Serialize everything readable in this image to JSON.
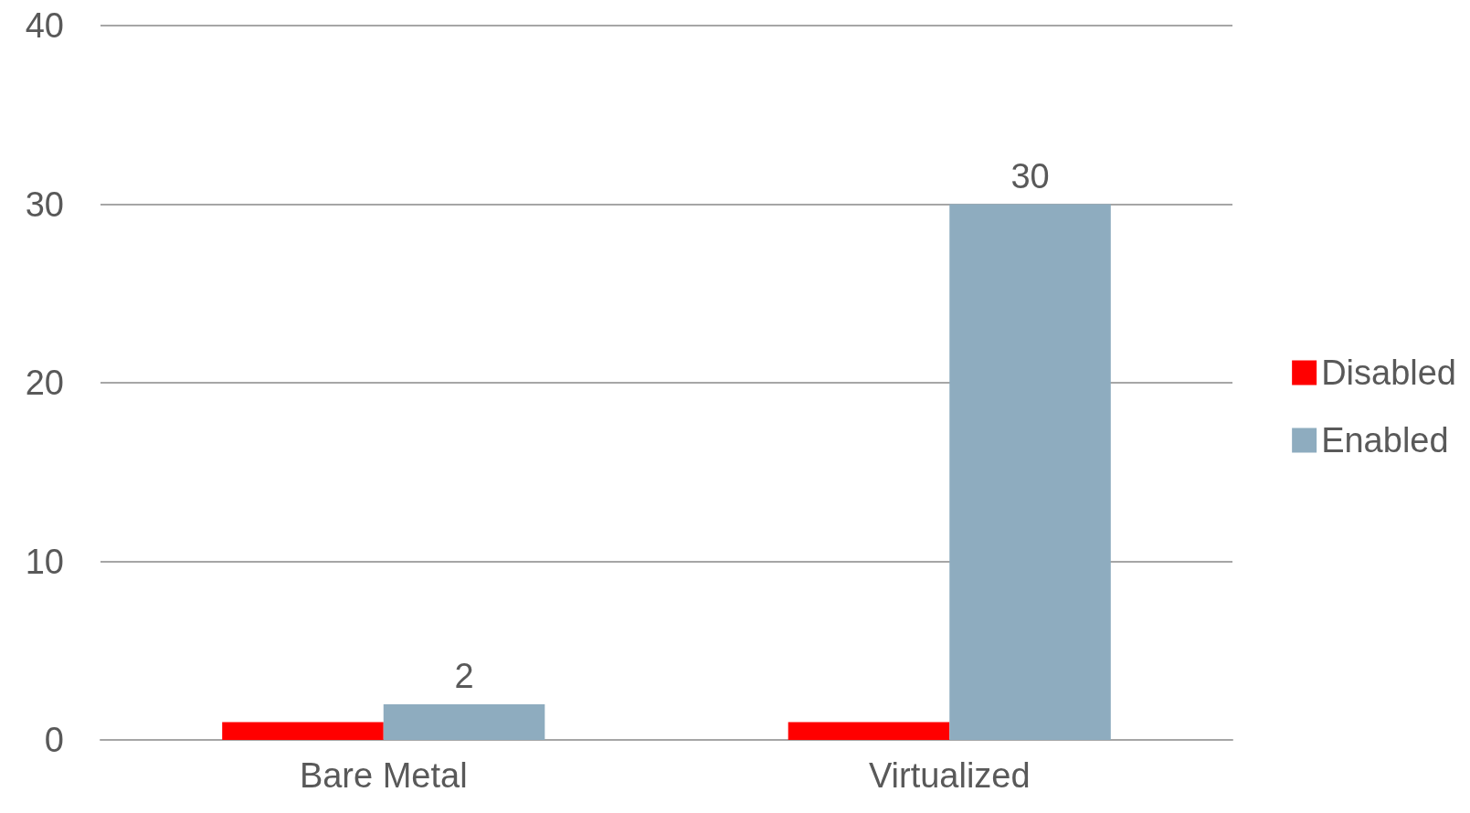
{
  "chart_data": {
    "type": "bar",
    "categories": [
      "Bare Metal",
      "Virtualized"
    ],
    "series": [
      {
        "name": "Disabled",
        "color": "#ff0000",
        "values": [
          1,
          1
        ]
      },
      {
        "name": "Enabled",
        "color": "#8eacbf",
        "values": [
          2,
          30
        ],
        "value_labels": [
          "2",
          "30"
        ]
      }
    ],
    "ylim": [
      0,
      40
    ],
    "yticks": [
      0,
      10,
      20,
      30,
      40
    ],
    "grid": "y",
    "legend": "right"
  }
}
